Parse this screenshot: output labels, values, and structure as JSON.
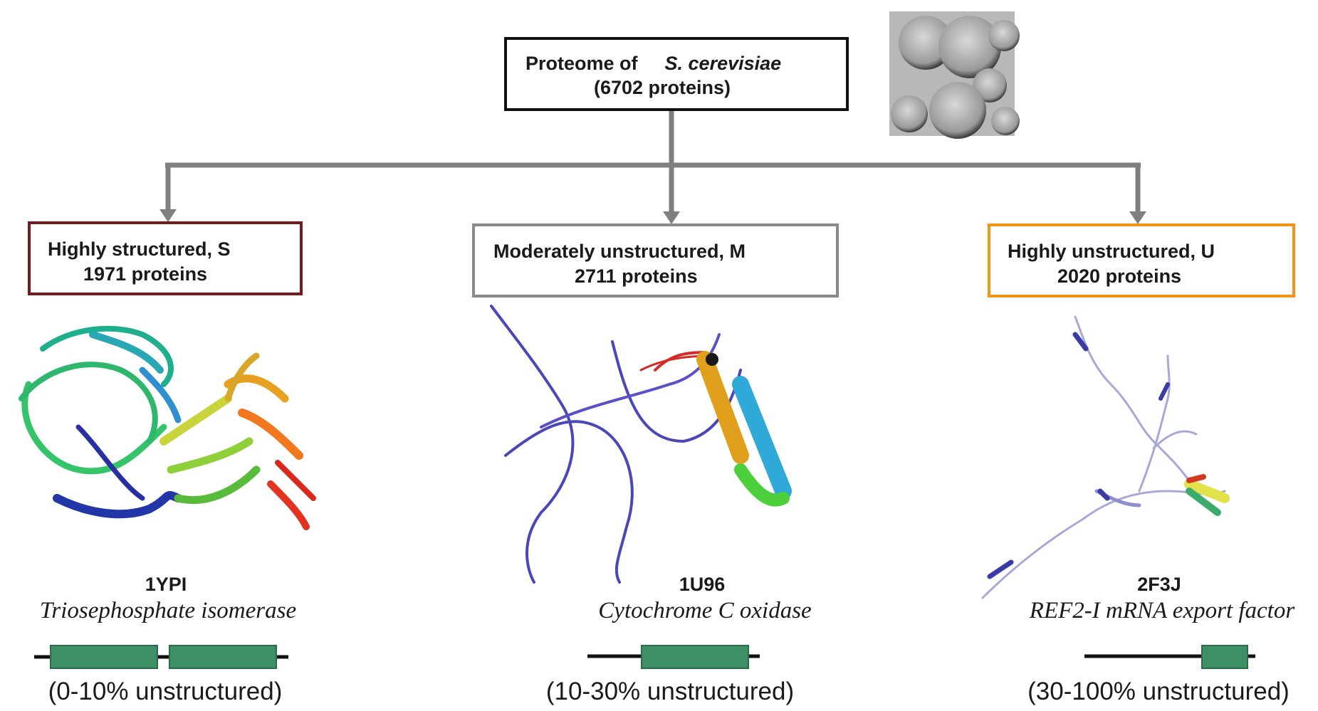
{
  "root": {
    "label": "Proteome of",
    "organism": "S. cerevisiae",
    "count": "(6702 proteins)"
  },
  "categories": [
    {
      "name": "Highly structured, S",
      "count": "1971 proteins",
      "border_color": "#7a1a1f",
      "pdb": "1YPI",
      "protein": "Triosephosphate isomerase",
      "range": "(0-10% unstructured)"
    },
    {
      "name": "Moderately unstructured, M",
      "count": "2711 proteins",
      "border_color": "#8a8a8a",
      "pdb": "1U96",
      "protein": "Cytochrome C oxidase",
      "range": "(10-30% unstructured)"
    },
    {
      "name": "Highly unstructured, U",
      "count": "2020 proteins",
      "border_color": "#f39419",
      "pdb": "2F3J",
      "protein": "REF2-I mRNA export factor",
      "range": "(30-100% unstructured)"
    }
  ],
  "colors": {
    "connector": "#7f7f7f",
    "domain_bar": "#3f8f66",
    "domain_bar_edge": "#2b6b4a"
  }
}
